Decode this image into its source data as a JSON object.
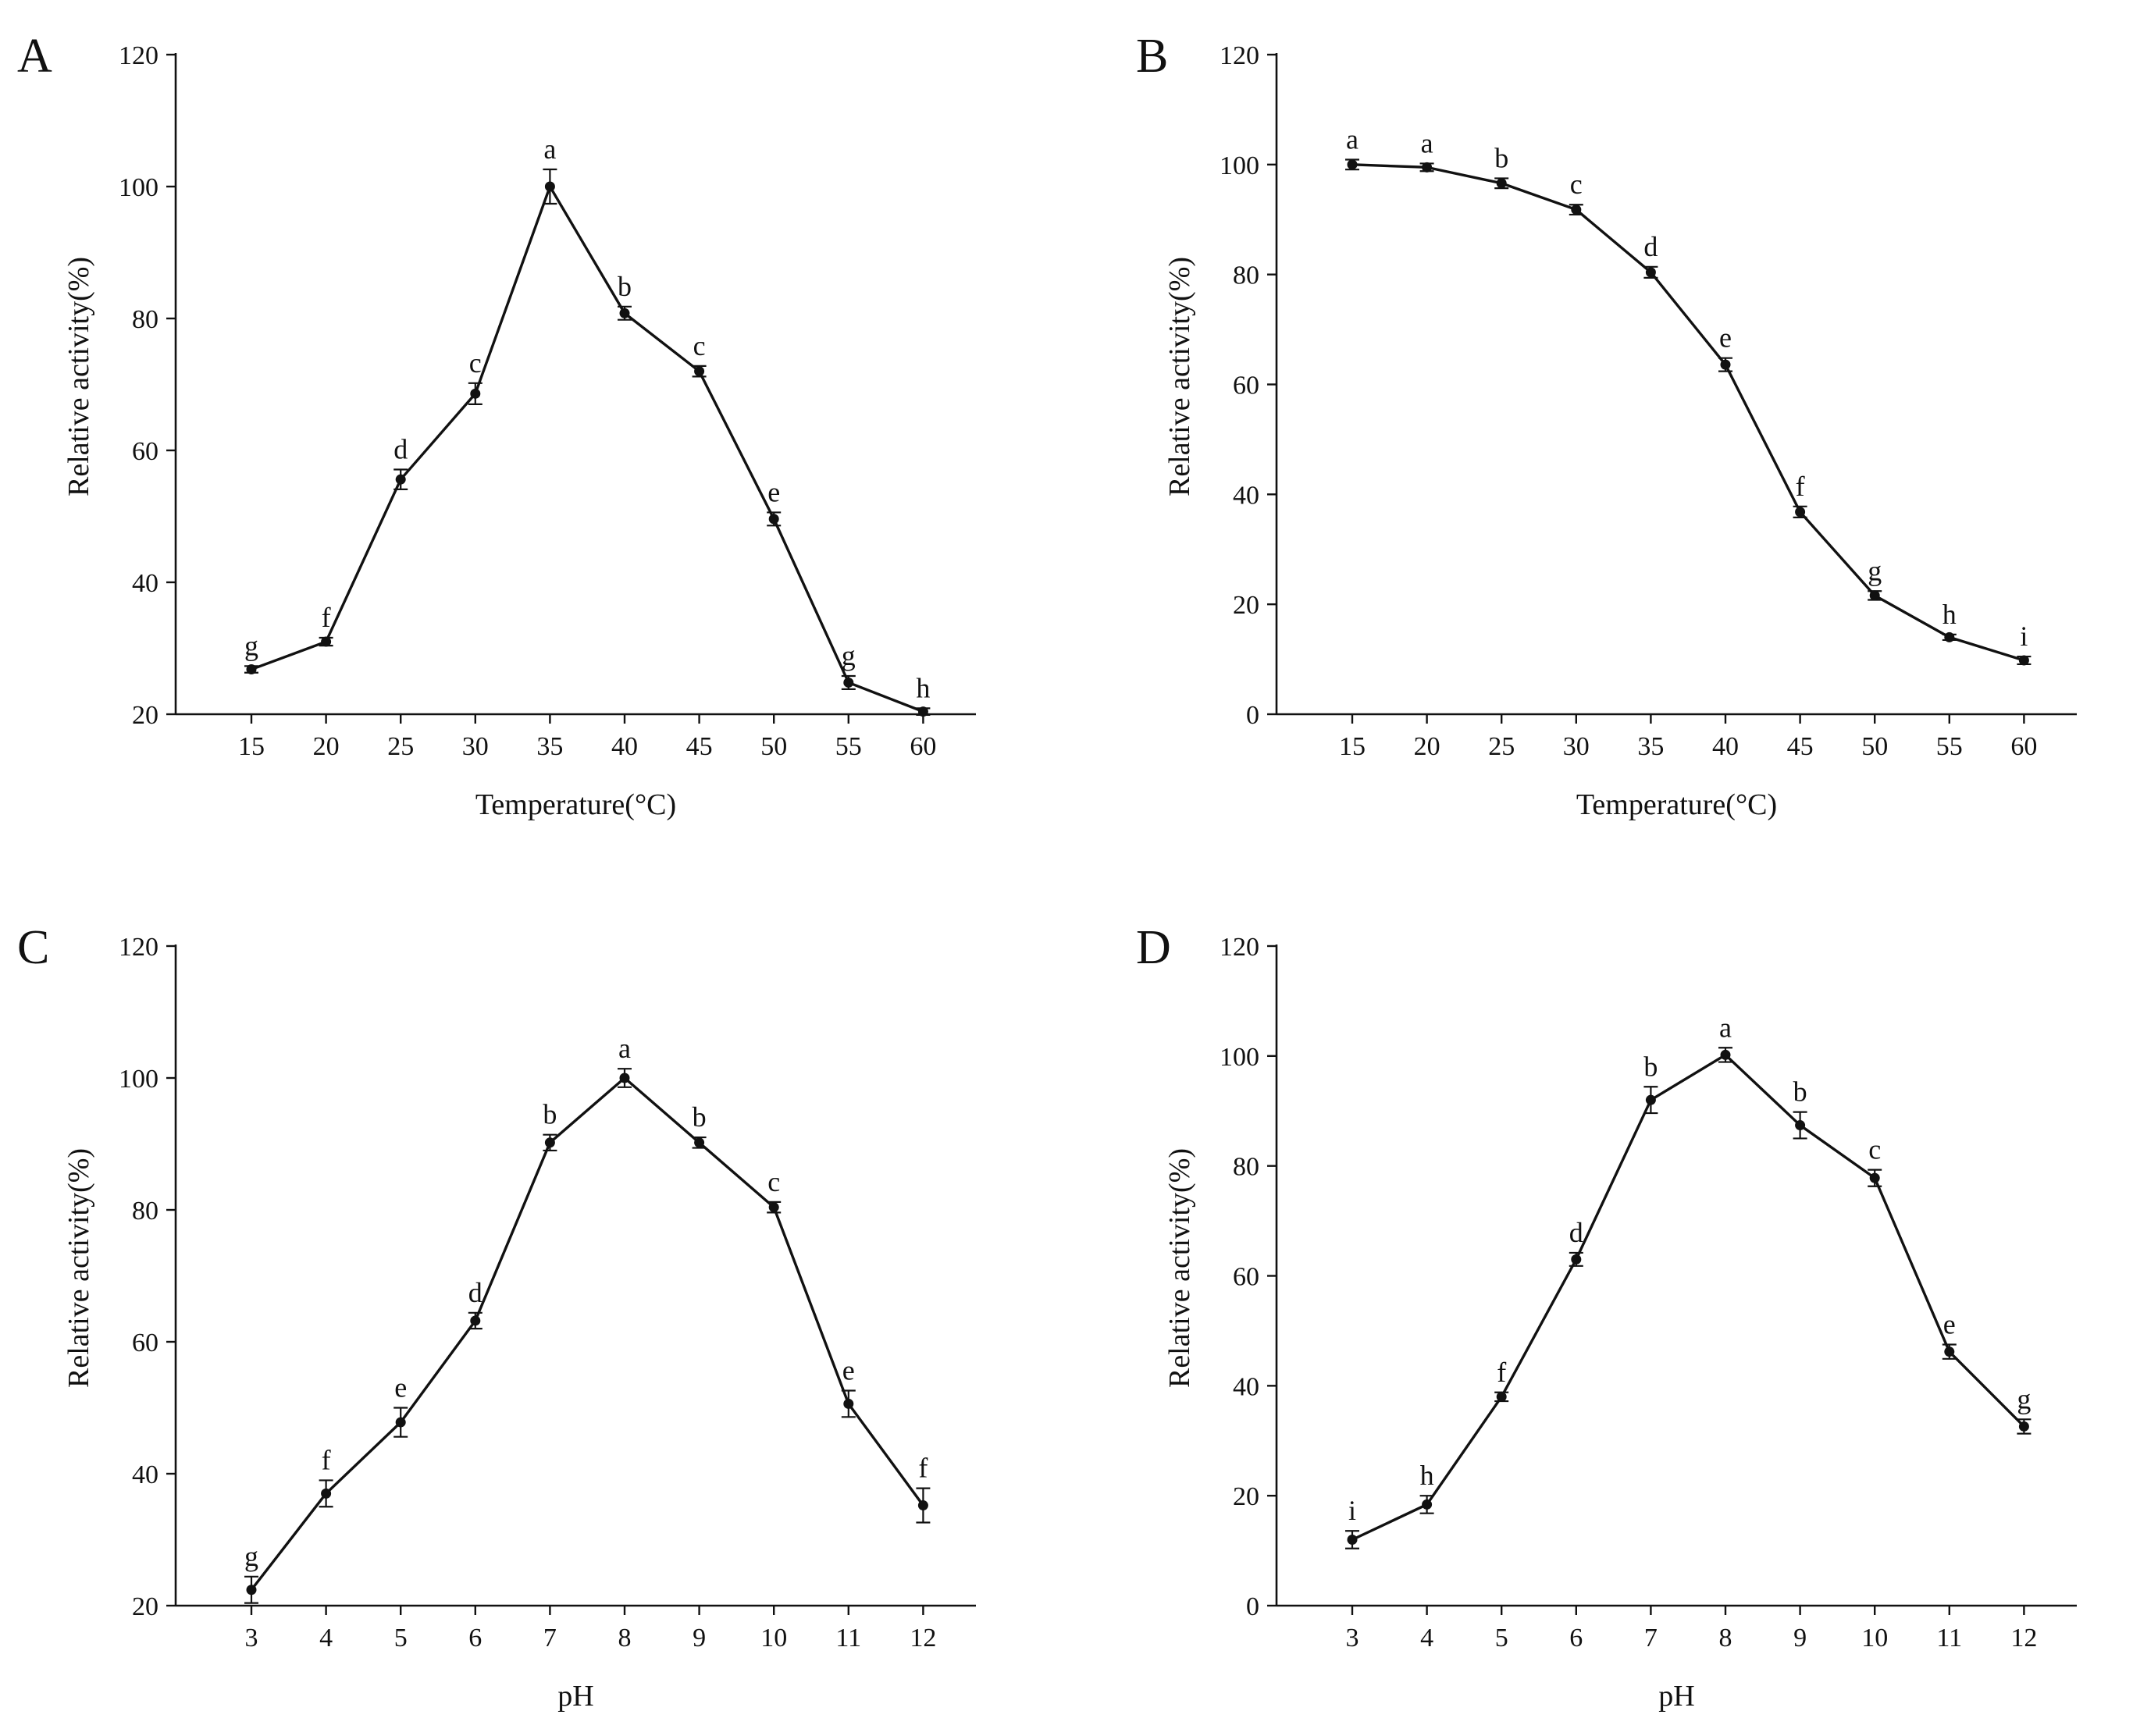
{
  "chart_data": [
    {
      "panel": "A",
      "type": "line",
      "xlabel": "Temperature(°C)",
      "ylabel": "Relative activity(%)",
      "categories": [
        "15",
        "20",
        "25",
        "30",
        "35",
        "40",
        "45",
        "50",
        "55",
        "60"
      ],
      "values": [
        26.8,
        31.0,
        55.6,
        68.6,
        100.0,
        80.8,
        72.0,
        49.6,
        24.8,
        20.4
      ],
      "errors": [
        0.5,
        0.6,
        1.5,
        1.6,
        2.6,
        1.0,
        0.8,
        1.0,
        1.0,
        0.5
      ],
      "labels": [
        "g",
        "f",
        "d",
        "c",
        "a",
        "b",
        "c",
        "e",
        "g",
        "h"
      ],
      "ylim": [
        20,
        120
      ],
      "yticks": [
        20,
        40,
        60,
        80,
        100,
        120
      ]
    },
    {
      "panel": "B",
      "type": "line",
      "xlabel": "Temperature(°C)",
      "ylabel": "Relative activity(%)",
      "categories": [
        "15",
        "20",
        "25",
        "30",
        "35",
        "40",
        "45",
        "50",
        "55",
        "60"
      ],
      "values": [
        100.0,
        99.5,
        96.6,
        91.8,
        80.4,
        63.6,
        36.8,
        21.6,
        14.0,
        9.8
      ],
      "errors": [
        0.9,
        0.7,
        0.9,
        0.9,
        1.0,
        1.2,
        1.0,
        0.8,
        0.5,
        0.7
      ],
      "labels": [
        "a",
        "a",
        "b",
        "c",
        "d",
        "e",
        "f",
        "g",
        "h",
        "i"
      ],
      "ylim": [
        0,
        120
      ],
      "yticks": [
        0,
        20,
        40,
        60,
        80,
        100,
        120
      ]
    },
    {
      "panel": "C",
      "type": "line",
      "xlabel": "pH",
      "ylabel": "Relative activity(%)",
      "categories": [
        "3",
        "4",
        "5",
        "6",
        "7",
        "8",
        "9",
        "10",
        "11",
        "12"
      ],
      "values": [
        22.4,
        37.0,
        47.8,
        63.2,
        90.2,
        100.0,
        90.2,
        80.4,
        50.6,
        35.2
      ],
      "errors": [
        2.0,
        2.0,
        2.2,
        1.2,
        1.2,
        1.4,
        0.8,
        0.8,
        2.0,
        2.6
      ],
      "labels": [
        "g",
        "f",
        "e",
        "d",
        "b",
        "a",
        "b",
        "c",
        "e",
        "f"
      ],
      "ylim": [
        20,
        120
      ],
      "yticks": [
        20,
        40,
        60,
        80,
        100,
        120
      ]
    },
    {
      "panel": "D",
      "type": "line",
      "xlabel": "pH",
      "ylabel": "Relative activity(%)",
      "categories": [
        "3",
        "4",
        "5",
        "6",
        "7",
        "8",
        "9",
        "10",
        "11",
        "12"
      ],
      "values": [
        12.0,
        18.4,
        38.0,
        63.0,
        92.0,
        100.2,
        87.4,
        77.8,
        46.2,
        32.6
      ],
      "errors": [
        1.6,
        1.6,
        0.8,
        1.2,
        2.4,
        1.3,
        2.4,
        1.5,
        1.3,
        1.3
      ],
      "labels": [
        "i",
        "h",
        "f",
        "d",
        "b",
        "a",
        "b",
        "c",
        "e",
        "g"
      ],
      "ylim": [
        0,
        120
      ],
      "yticks": [
        0,
        20,
        40,
        60,
        80,
        100,
        120
      ]
    }
  ]
}
